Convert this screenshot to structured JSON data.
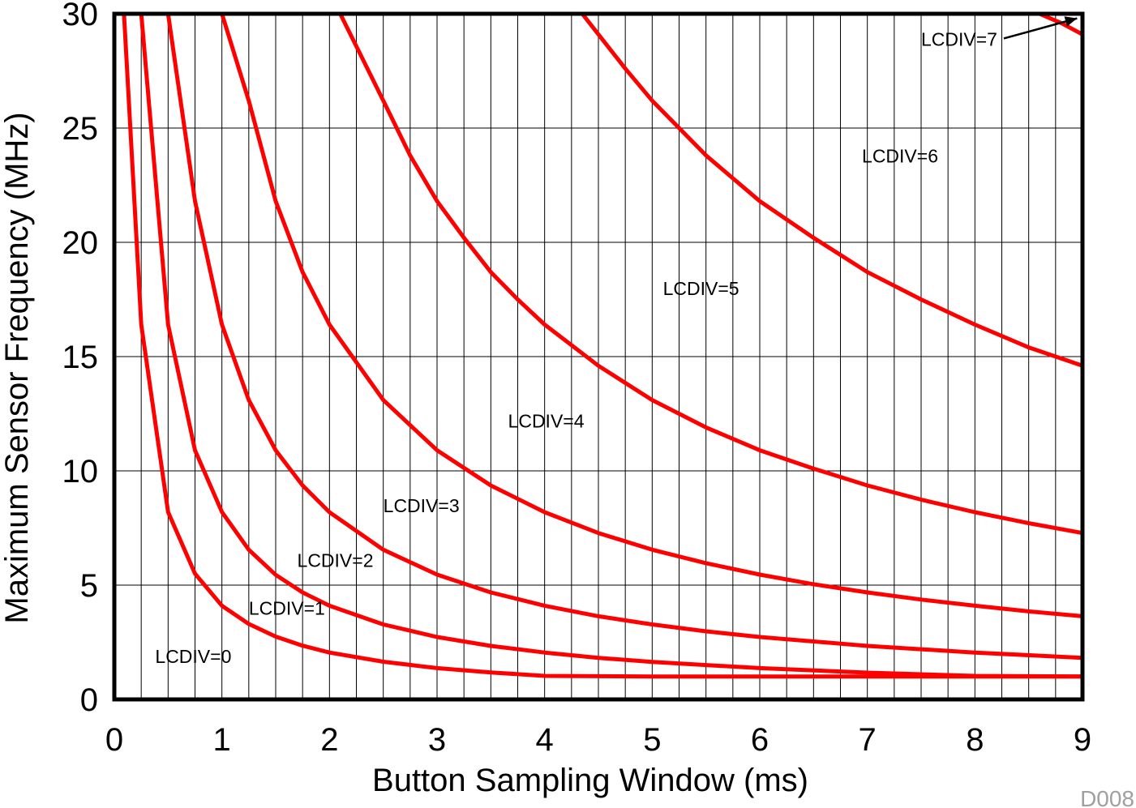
{
  "chart_data": {
    "type": "line",
    "xlabel": "Button Sampling Window (ms)",
    "ylabel": "Maximum Sensor Frequency (MHz)",
    "xlim": [
      0,
      9
    ],
    "ylim": [
      0,
      30
    ],
    "x_ticks": [
      "0",
      "1",
      "2",
      "3",
      "4",
      "5",
      "6",
      "7",
      "8",
      "9"
    ],
    "y_ticks": [
      "0",
      "5",
      "10",
      "15",
      "20",
      "25",
      "30"
    ],
    "grid": true,
    "x_minor_step": 0.25,
    "footnote": "D008",
    "line_color": "#ff0000",
    "series": [
      {
        "name": "LCDIV=0",
        "points": [
          [
            0.09,
            30
          ],
          [
            0.25,
            16.4
          ],
          [
            0.5,
            8.2
          ],
          [
            0.75,
            5.5
          ],
          [
            1,
            4.1
          ],
          [
            1.25,
            3.3
          ],
          [
            1.5,
            2.75
          ],
          [
            1.75,
            2.35
          ],
          [
            2,
            2.05
          ],
          [
            2.5,
            1.65
          ],
          [
            3,
            1.37
          ],
          [
            3.5,
            1.18
          ],
          [
            4,
            1.03
          ],
          [
            5,
            1.0
          ],
          [
            6,
            1.0
          ],
          [
            7,
            1.0
          ],
          [
            8,
            1.0
          ],
          [
            9,
            1.0
          ]
        ]
      },
      {
        "name": "LCDIV=1",
        "points": [
          [
            0.25,
            30
          ],
          [
            0.5,
            16.4
          ],
          [
            0.75,
            10.9
          ],
          [
            1,
            8.2
          ],
          [
            1.25,
            6.55
          ],
          [
            1.5,
            5.45
          ],
          [
            1.75,
            4.68
          ],
          [
            2,
            4.1
          ],
          [
            2.5,
            3.28
          ],
          [
            3,
            2.73
          ],
          [
            3.5,
            2.34
          ],
          [
            4,
            2.05
          ],
          [
            4.5,
            1.82
          ],
          [
            5,
            1.64
          ],
          [
            6,
            1.37
          ],
          [
            7,
            1.17
          ],
          [
            8,
            1.03
          ],
          [
            9,
            1.0
          ]
        ]
      },
      {
        "name": "LCDIV=2",
        "points": [
          [
            0.5,
            30
          ],
          [
            0.75,
            21.8
          ],
          [
            1,
            16.4
          ],
          [
            1.25,
            13.1
          ],
          [
            1.5,
            10.9
          ],
          [
            1.75,
            9.36
          ],
          [
            2,
            8.19
          ],
          [
            2.5,
            6.55
          ],
          [
            3,
            5.46
          ],
          [
            3.5,
            4.68
          ],
          [
            4,
            4.1
          ],
          [
            4.5,
            3.64
          ],
          [
            5,
            3.28
          ],
          [
            5.5,
            2.98
          ],
          [
            6,
            2.73
          ],
          [
            7,
            2.34
          ],
          [
            8,
            2.05
          ],
          [
            9,
            1.82
          ]
        ]
      },
      {
        "name": "LCDIV=3",
        "points": [
          [
            1,
            30
          ],
          [
            1.25,
            26.2
          ],
          [
            1.5,
            21.8
          ],
          [
            1.75,
            18.7
          ],
          [
            2,
            16.4
          ],
          [
            2.5,
            13.1
          ],
          [
            3,
            10.9
          ],
          [
            3.5,
            9.36
          ],
          [
            4,
            8.19
          ],
          [
            4.5,
            7.28
          ],
          [
            5,
            6.55
          ],
          [
            5.5,
            5.96
          ],
          [
            6,
            5.46
          ],
          [
            6.5,
            5.04
          ],
          [
            7,
            4.68
          ],
          [
            7.5,
            4.37
          ],
          [
            8,
            4.1
          ],
          [
            8.5,
            3.85
          ],
          [
            9,
            3.64
          ]
        ]
      },
      {
        "name": "LCDIV=4",
        "points": [
          [
            2.1,
            30
          ],
          [
            2.5,
            26.2
          ],
          [
            2.75,
            23.8
          ],
          [
            3,
            21.8
          ],
          [
            3.25,
            20.2
          ],
          [
            3.5,
            18.7
          ],
          [
            3.75,
            17.5
          ],
          [
            4,
            16.4
          ],
          [
            4.5,
            14.6
          ],
          [
            5,
            13.1
          ],
          [
            5.5,
            11.9
          ],
          [
            6,
            10.9
          ],
          [
            6.5,
            10.1
          ],
          [
            7,
            9.36
          ],
          [
            7.5,
            8.74
          ],
          [
            8,
            8.19
          ],
          [
            8.5,
            7.71
          ],
          [
            9,
            7.28
          ]
        ]
      },
      {
        "name": "LCDIV=5",
        "points": [
          [
            4.35,
            30
          ],
          [
            4.5,
            29.1
          ],
          [
            4.75,
            27.6
          ],
          [
            5,
            26.2
          ],
          [
            5.5,
            23.8
          ],
          [
            6,
            21.8
          ],
          [
            6.5,
            20.2
          ],
          [
            7,
            18.7
          ],
          [
            7.5,
            17.5
          ],
          [
            8,
            16.4
          ],
          [
            8.5,
            15.4
          ],
          [
            9,
            14.6
          ]
        ]
      },
      {
        "name": "LCDIV=6",
        "points": [
          [
            8.6,
            30
          ],
          [
            8.8,
            29.6
          ],
          [
            9,
            29.1
          ]
        ]
      }
    ],
    "annotations": [
      {
        "text": "LCDIV=0",
        "x": 0.38,
        "y": 1.6
      },
      {
        "text": "LCDIV=1",
        "x": 1.25,
        "y": 3.7
      },
      {
        "text": "LCDIV=2",
        "x": 1.7,
        "y": 5.8
      },
      {
        "text": "LCDIV=3",
        "x": 2.5,
        "y": 8.2
      },
      {
        "text": "LCDIV=4",
        "x": 3.66,
        "y": 11.9
      },
      {
        "text": "LCDIV=5",
        "x": 5.1,
        "y": 17.7
      },
      {
        "text": "LCDIV=6",
        "x": 6.95,
        "y": 23.5
      },
      {
        "text": "LCDIV=7",
        "x": 7.5,
        "y": 28.6,
        "arrow_to": [
          8.95,
          29.8
        ]
      }
    ]
  }
}
